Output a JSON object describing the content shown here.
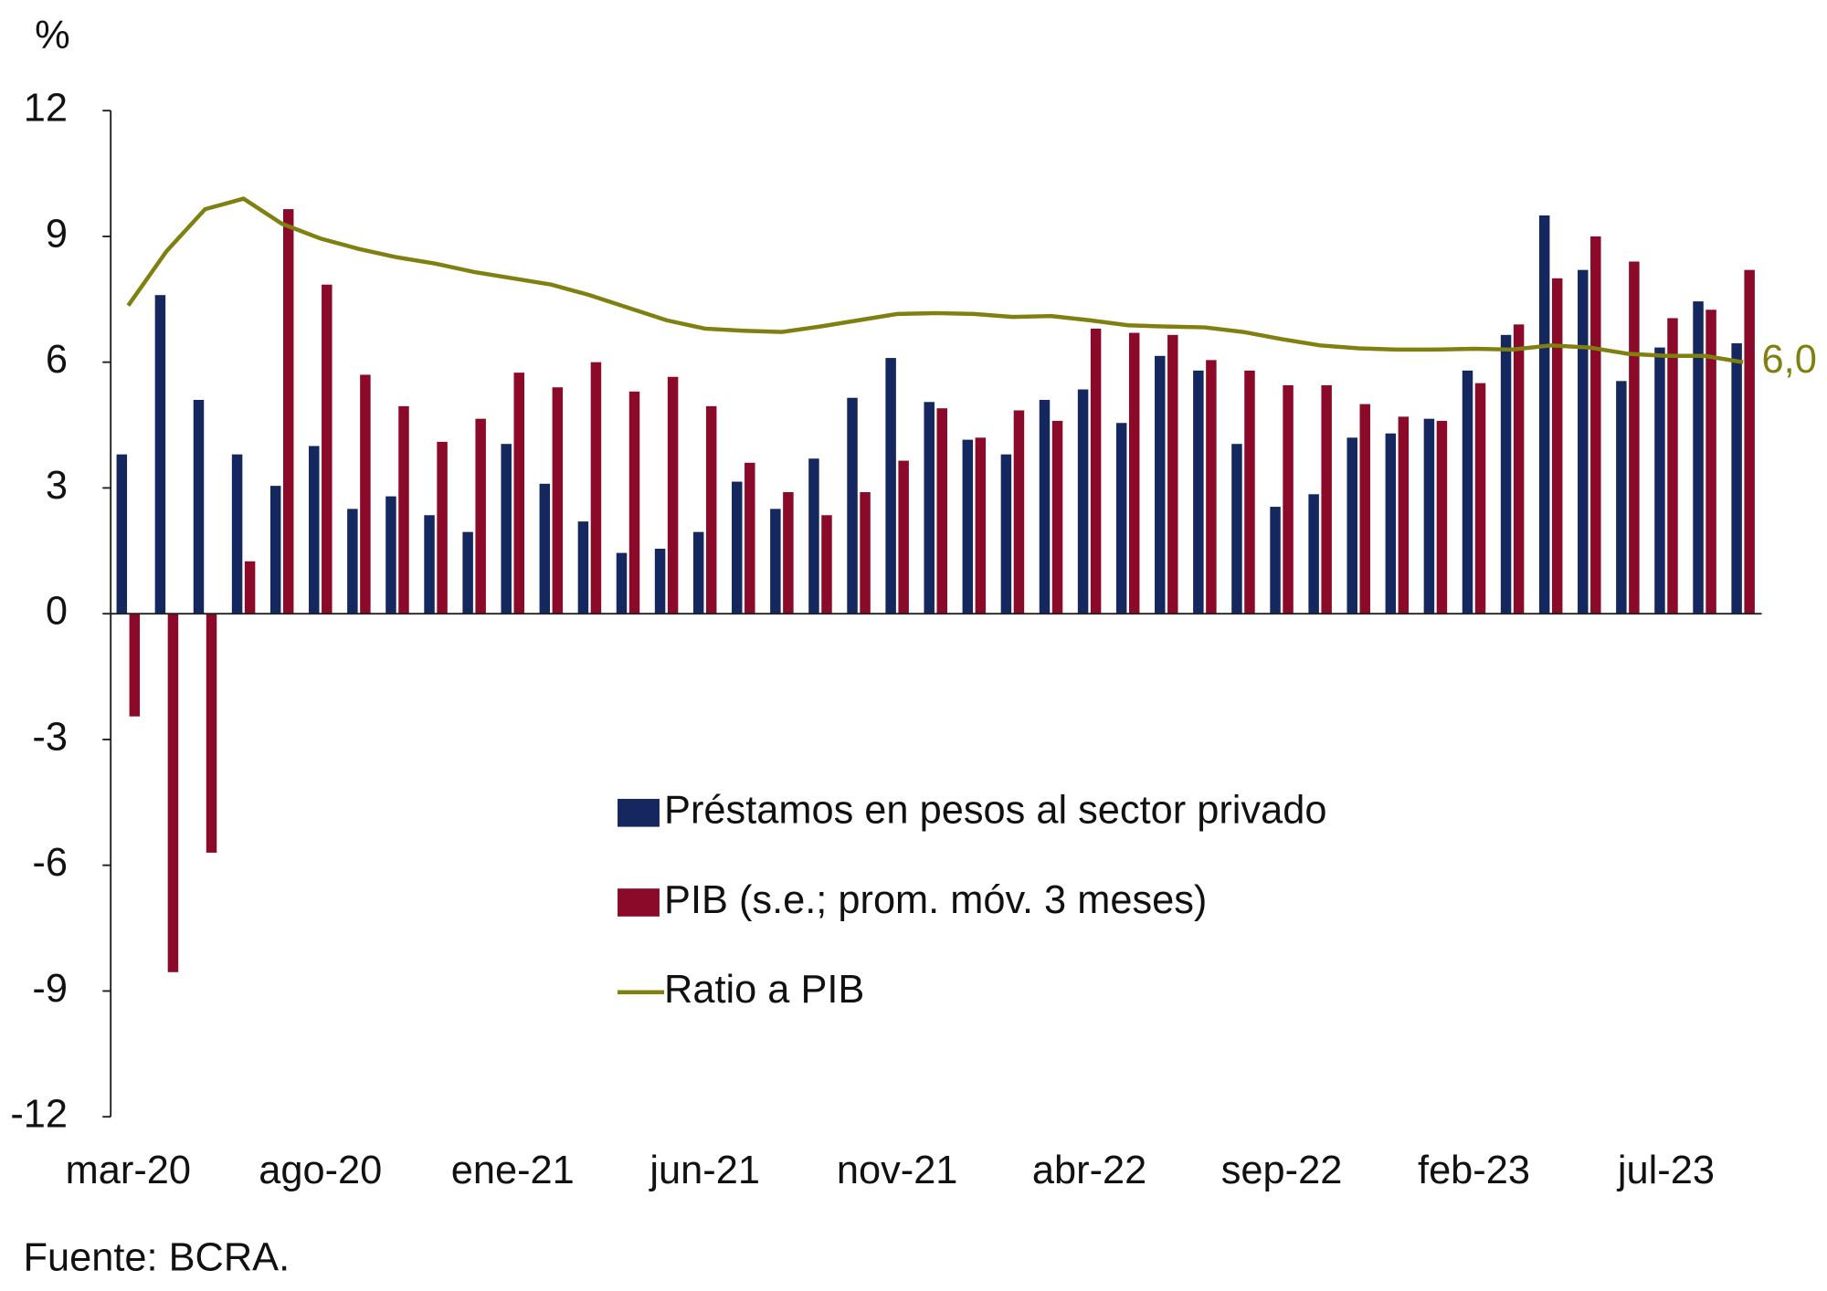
{
  "chart_data": {
    "type": "bar",
    "y_label": "%",
    "source": "Fuente: BCRA.",
    "categories": [
      "mar-20",
      null,
      null,
      null,
      null,
      "ago-20",
      null,
      null,
      null,
      null,
      "ene-21",
      null,
      null,
      null,
      null,
      "jun-21",
      null,
      null,
      null,
      null,
      "nov-21",
      null,
      null,
      null,
      null,
      "abr-22",
      null,
      null,
      null,
      null,
      "sep-22",
      null,
      null,
      null,
      null,
      "feb-23",
      null,
      null,
      null,
      null,
      "jul-23",
      null,
      null
    ],
    "series": [
      {
        "name": "Préstamos en pesos al sector privado",
        "type": "bar",
        "color": "#14285f",
        "values": [
          3.8,
          7.6,
          5.1,
          3.8,
          3.05,
          4.0,
          2.5,
          2.8,
          2.35,
          1.95,
          4.05,
          3.1,
          2.2,
          1.45,
          1.55,
          1.95,
          3.15,
          2.5,
          3.7,
          5.15,
          6.1,
          5.05,
          4.15,
          3.8,
          5.1,
          5.35,
          4.55,
          6.15,
          5.8,
          4.05,
          2.55,
          2.85,
          4.2,
          4.3,
          4.65,
          5.8,
          6.65,
          9.5,
          8.2,
          5.55,
          6.35,
          7.45,
          6.45
        ]
      },
      {
        "name": "PIB (s.e.; prom. móv. 3 meses)",
        "type": "bar",
        "color": "#8b0a2a",
        "values": [
          -2.45,
          -8.55,
          -5.7,
          1.25,
          9.65,
          7.85,
          5.7,
          4.95,
          4.1,
          4.65,
          5.75,
          5.4,
          6.0,
          5.3,
          5.65,
          4.95,
          3.6,
          2.9,
          2.35,
          2.9,
          3.65,
          4.9,
          4.2,
          4.85,
          4.6,
          6.8,
          6.7,
          6.65,
          6.05,
          5.8,
          5.45,
          5.45,
          5.0,
          4.7,
          4.6,
          5.5,
          6.9,
          8.0,
          9.0,
          8.4,
          7.05,
          7.25,
          8.2
        ]
      },
      {
        "name": "Ratio a PIB",
        "type": "line",
        "color": "#808010",
        "values": [
          7.35,
          8.65,
          9.65,
          9.9,
          9.3,
          8.95,
          8.7,
          8.5,
          8.35,
          8.15,
          8.0,
          7.85,
          7.6,
          7.3,
          7.0,
          6.8,
          6.75,
          6.72,
          6.85,
          7.0,
          7.15,
          7.17,
          7.15,
          7.08,
          7.1,
          7.0,
          6.88,
          6.85,
          6.83,
          6.72,
          6.55,
          6.4,
          6.33,
          6.3,
          6.3,
          6.32,
          6.3,
          6.4,
          6.35,
          6.2,
          6.15,
          6.15,
          6.0
        ],
        "value_labels": [
          null,
          null,
          null,
          null,
          null,
          null,
          null,
          null,
          null,
          null,
          null,
          null,
          null,
          null,
          null,
          null,
          null,
          null,
          null,
          null,
          null,
          null,
          null,
          null,
          null,
          null,
          null,
          null,
          null,
          null,
          null,
          null,
          null,
          null,
          null,
          null,
          null,
          null,
          null,
          null,
          null,
          null,
          "6,0"
        ]
      }
    ],
    "ylim": [
      -12,
      12
    ],
    "yticks": [
      -12,
      -9,
      -6,
      -3,
      0,
      3,
      6,
      9,
      12
    ],
    "legend": "center"
  }
}
